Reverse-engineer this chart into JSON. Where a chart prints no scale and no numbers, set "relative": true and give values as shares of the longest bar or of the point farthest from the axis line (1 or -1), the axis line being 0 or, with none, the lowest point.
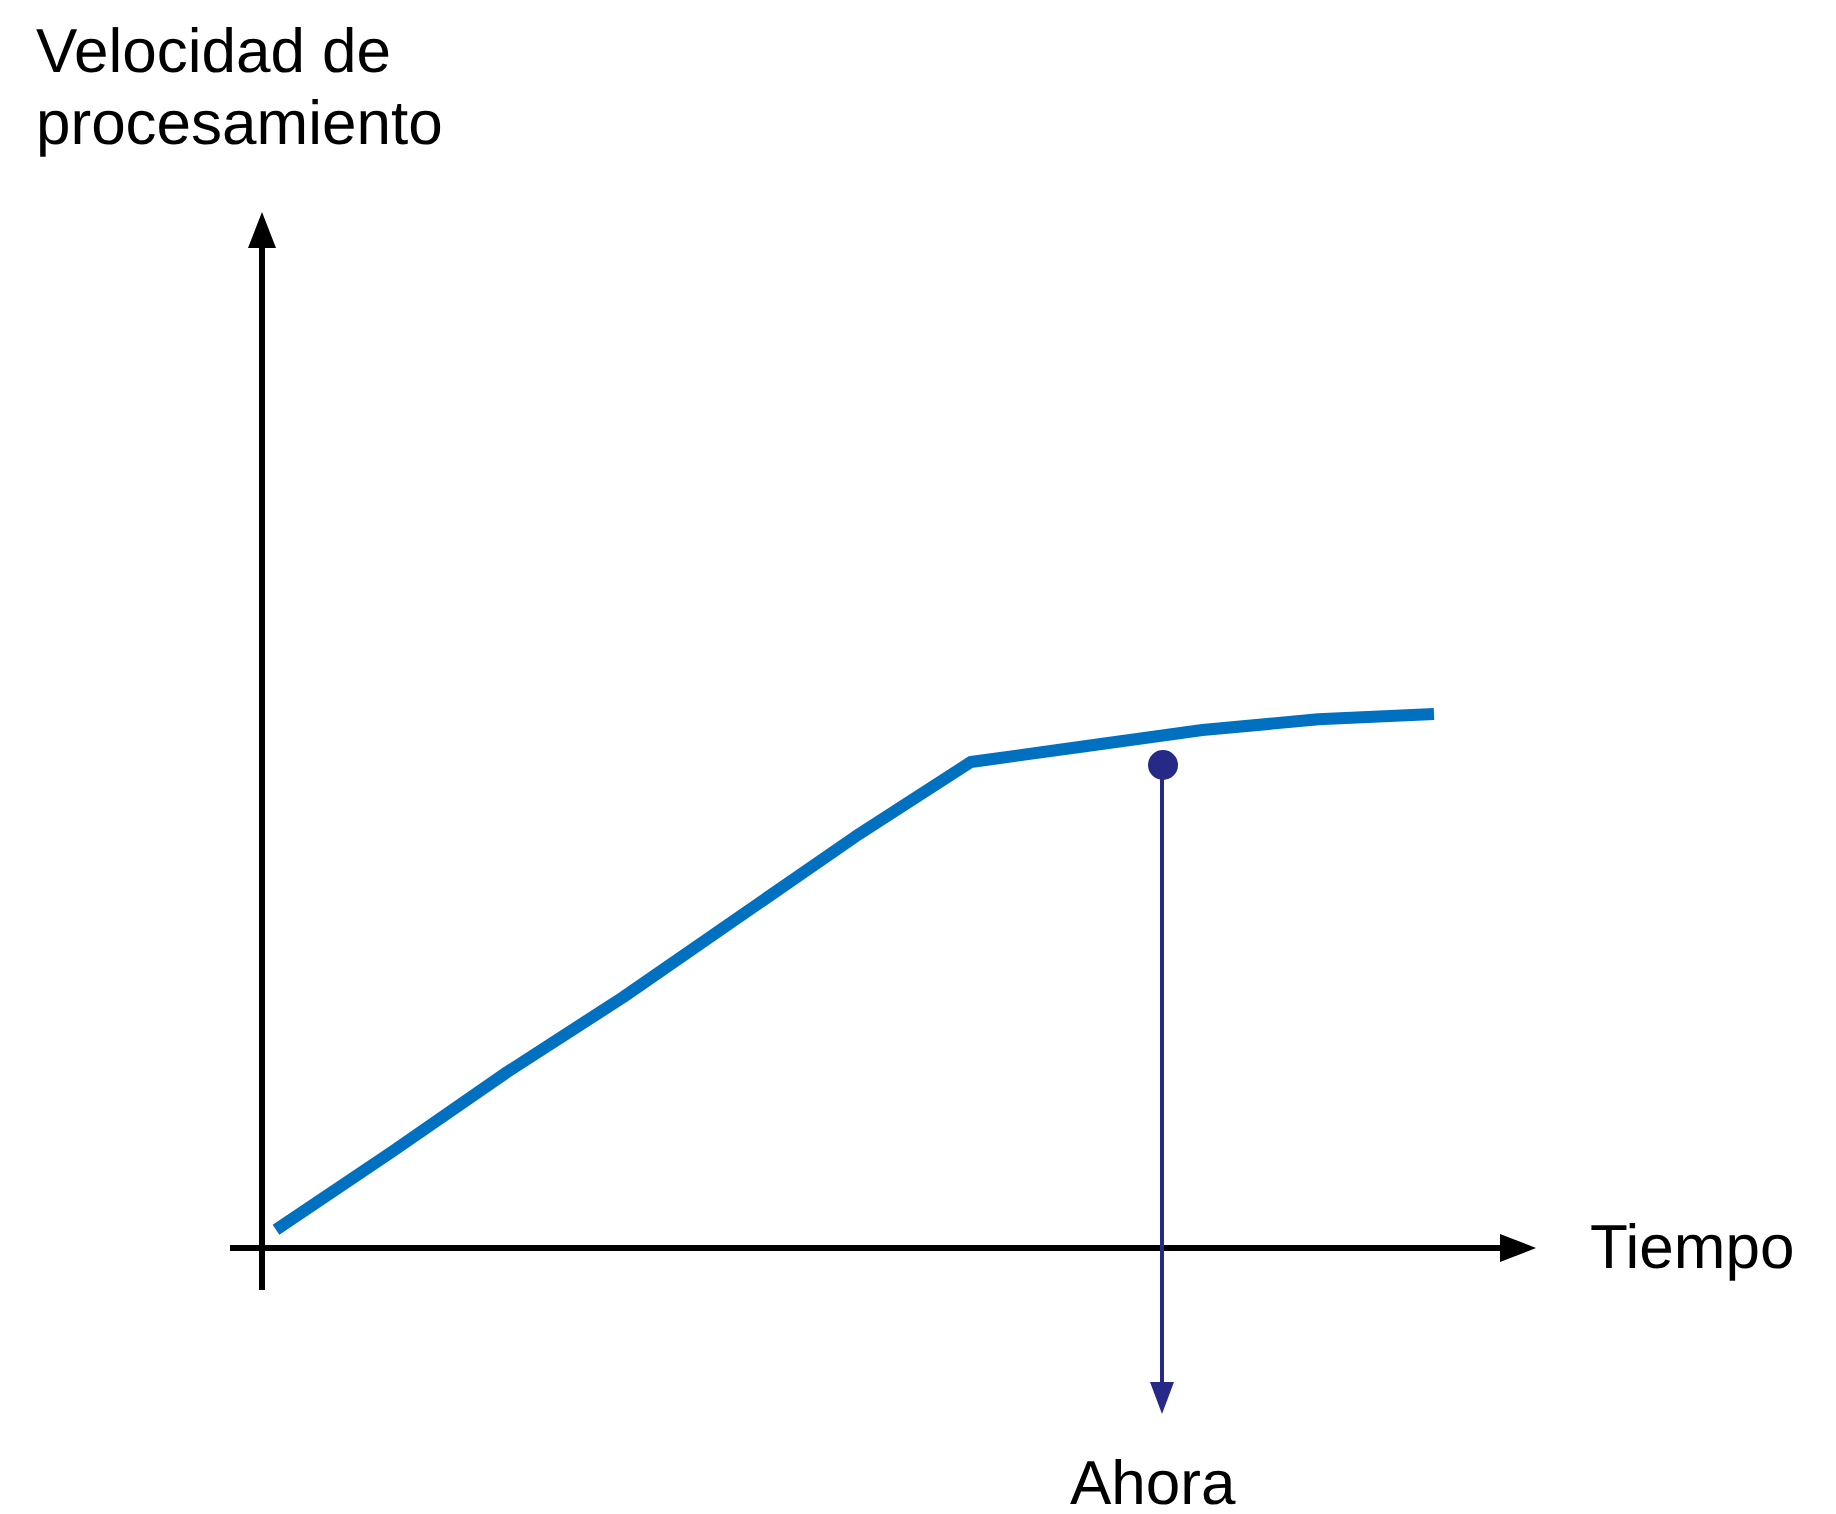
{
  "chart_data": {
    "type": "line",
    "xlabel": "Tiempo",
    "title": "Velocidad de procesamiento",
    "annotations": [
      "Ahora"
    ],
    "relative": true,
    "marker": "none",
    "grid": false,
    "legend": false,
    "categories": [
      null,
      null,
      null,
      null,
      null,
      null,
      null,
      null,
      null,
      null,
      null
    ],
    "series": [
      {
        "color": "#0070c0",
        "values": [
          0.034,
          0.18,
          0.33,
          0.47,
          0.62,
          0.77,
          0.91,
          0.94,
          0.97,
          0.99,
          1
        ]
      }
    ]
  }
}
